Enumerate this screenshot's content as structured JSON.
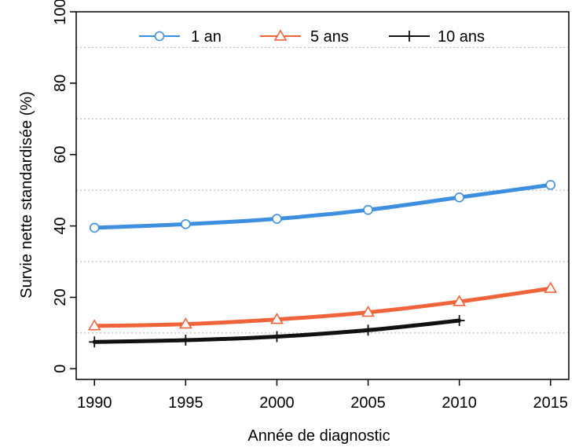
{
  "chart_data": {
    "type": "line",
    "title": "",
    "xlabel": "Année de diagnostic",
    "ylabel": "Survie nette standardisée (%)",
    "x": [
      1990,
      1995,
      2000,
      2005,
      2010,
      2015
    ],
    "xlim": [
      1989,
      2016
    ],
    "ylim": [
      -3,
      100
    ],
    "xticks": [
      1990,
      1995,
      2000,
      2005,
      2010,
      2015
    ],
    "yticks": [
      0,
      20,
      40,
      60,
      80,
      100
    ],
    "grid": "horizontal dotted",
    "legend_position": "top",
    "series": [
      {
        "name": "1 an",
        "color": "#3f8fe0",
        "marker": "circle",
        "x": [
          1990,
          1995,
          2000,
          2005,
          2010,
          2015
        ],
        "values": [
          39.5,
          40.5,
          42.0,
          44.5,
          48.0,
          51.5
        ]
      },
      {
        "name": "5 ans",
        "color": "#f0643c",
        "marker": "triangle",
        "x": [
          1990,
          1995,
          2000,
          2005,
          2010,
          2015
        ],
        "values": [
          12.0,
          12.5,
          13.8,
          15.8,
          18.8,
          22.5
        ]
      },
      {
        "name": "10 ans",
        "color": "#111111",
        "marker": "plus",
        "x": [
          1990,
          1995,
          2000,
          2005,
          2010
        ],
        "values": [
          7.5,
          8.0,
          9.0,
          10.8,
          13.5
        ]
      }
    ]
  }
}
